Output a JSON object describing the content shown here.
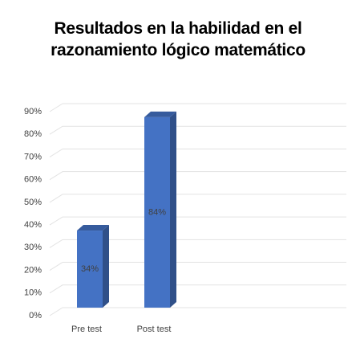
{
  "chart_data": {
    "type": "bar3d",
    "title": "Resultados en la habilidad en el razonamiento lógico matemático",
    "categories": [
      "Pre test",
      "Post test"
    ],
    "values": [
      34,
      84
    ],
    "value_labels": [
      "34%",
      "84%"
    ],
    "color": "#4472c4",
    "ylim": [
      0,
      90
    ],
    "yticks": [
      {
        "value": 0,
        "label": "0%"
      },
      {
        "value": 10,
        "label": "10%"
      },
      {
        "value": 20,
        "label": "20%"
      },
      {
        "value": 30,
        "label": "30%"
      },
      {
        "value": 40,
        "label": "40%"
      },
      {
        "value": 50,
        "label": "50%"
      },
      {
        "value": 60,
        "label": "60%"
      },
      {
        "value": 70,
        "label": "70%"
      },
      {
        "value": 80,
        "label": "80%"
      },
      {
        "value": 90,
        "label": "90%"
      }
    ],
    "grid": true
  }
}
